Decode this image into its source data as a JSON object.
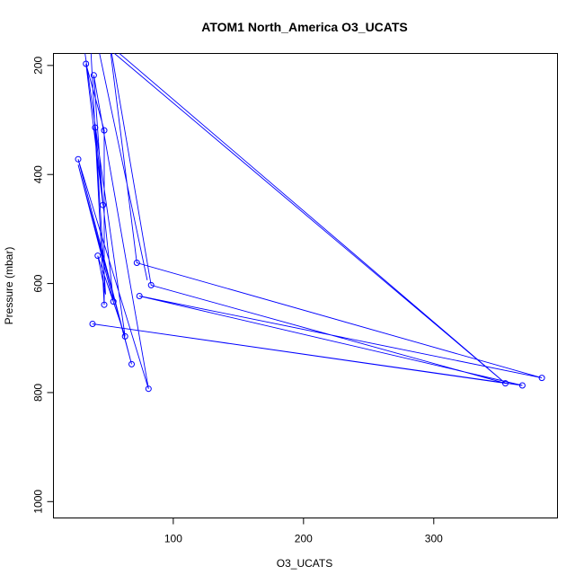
{
  "chart_data": {
    "type": "line",
    "title": "ATOM1 North_America O3_UCATS",
    "xlabel": "O3_UCATS",
    "ylabel": "Pressure (mbar)",
    "xlim": [
      8,
      395
    ],
    "ylim": [
      1030,
      178
    ],
    "y_reversed": true,
    "x_ticks": [
      100,
      200,
      300
    ],
    "y_ticks": [
      200,
      400,
      600,
      800,
      1000
    ],
    "series_color": "#0000ff",
    "marker": "open-circle",
    "lines_visible": true,
    "points": [
      {
        "x": 40,
        "y": 140
      },
      {
        "x": 80,
        "y": 594
      },
      {
        "x": 40,
        "y": 140
      },
      {
        "x": 355,
        "y": 783
      },
      {
        "x": 83,
        "y": 603
      },
      {
        "x": 50,
        "y": 140
      },
      {
        "x": 72,
        "y": 562
      },
      {
        "x": 383,
        "y": 773
      },
      {
        "x": 74,
        "y": 623
      },
      {
        "x": 368,
        "y": 787
      },
      {
        "x": 38,
        "y": 674
      },
      {
        "x": 355,
        "y": 783
      },
      {
        "x": 36,
        "y": 140
      },
      {
        "x": 47,
        "y": 639
      },
      {
        "x": 47,
        "y": 319
      },
      {
        "x": 33,
        "y": 197
      },
      {
        "x": 46,
        "y": 456
      },
      {
        "x": 39,
        "y": 218
      },
      {
        "x": 81,
        "y": 793
      },
      {
        "x": 27,
        "y": 372
      },
      {
        "x": 68,
        "y": 748
      },
      {
        "x": 27,
        "y": 382
      },
      {
        "x": 54,
        "y": 633
      },
      {
        "x": 40,
        "y": 314
      },
      {
        "x": 48,
        "y": 620
      },
      {
        "x": 42,
        "y": 549
      },
      {
        "x": 63,
        "y": 697
      },
      {
        "x": 30,
        "y": 140
      }
    ],
    "markers": [
      {
        "x": 33,
        "y": 197
      },
      {
        "x": 39,
        "y": 218
      },
      {
        "x": 40,
        "y": 314
      },
      {
        "x": 47,
        "y": 319
      },
      {
        "x": 27,
        "y": 372
      },
      {
        "x": 46,
        "y": 456
      },
      {
        "x": 42,
        "y": 549
      },
      {
        "x": 72,
        "y": 562
      },
      {
        "x": 83,
        "y": 603
      },
      {
        "x": 74,
        "y": 623
      },
      {
        "x": 54,
        "y": 633
      },
      {
        "x": 47,
        "y": 639
      },
      {
        "x": 38,
        "y": 674
      },
      {
        "x": 63,
        "y": 697
      },
      {
        "x": 68,
        "y": 748
      },
      {
        "x": 383,
        "y": 773
      },
      {
        "x": 355,
        "y": 783
      },
      {
        "x": 368,
        "y": 787
      },
      {
        "x": 81,
        "y": 793
      }
    ]
  }
}
